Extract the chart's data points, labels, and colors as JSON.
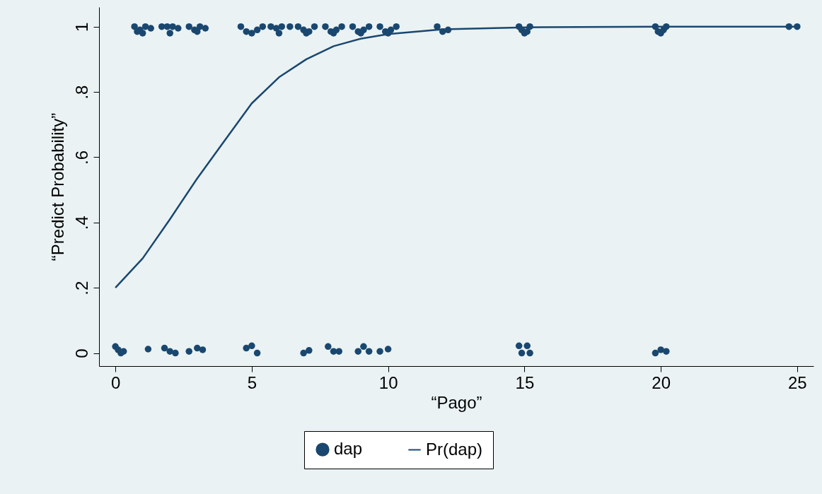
{
  "chart_data": {
    "type": "scatter",
    "xlabel": "“Pago”",
    "ylabel": "“Predict Probability”",
    "xlim": [
      -0.6,
      25.6
    ],
    "xticks": [
      0,
      5,
      10,
      15,
      20,
      25
    ],
    "ylim": [
      -0.04,
      1.06
    ],
    "yticks": [
      0,
      {
        "value": 0.2,
        "label": ".2"
      },
      {
        "value": 0.4,
        "label": ".4"
      },
      {
        "value": 0.6,
        "label": ".6"
      },
      {
        "value": 0.8,
        "label": ".8"
      },
      1
    ],
    "grid": false,
    "legend": "bottom",
    "line_style": "solid",
    "series": [
      {
        "name": "dap",
        "marker": "circle",
        "color": "#1a476f",
        "x": [
          0.7,
          0.8,
          0.9,
          1.0,
          1.1,
          1.3,
          1.7,
          1.9,
          2.0,
          2.1,
          2.3,
          2.7,
          2.9,
          3.0,
          3.1,
          3.3,
          4.6,
          4.8,
          5.0,
          5.2,
          5.4,
          5.7,
          5.9,
          6.0,
          6.1,
          6.4,
          6.7,
          6.9,
          7.0,
          7.1,
          7.3,
          7.7,
          7.9,
          8.0,
          8.1,
          8.3,
          8.7,
          8.9,
          9.0,
          9.1,
          9.3,
          9.7,
          9.9,
          10.0,
          10.1,
          10.3,
          11.8,
          12.0,
          12.2,
          14.8,
          14.9,
          15.0,
          15.1,
          15.2,
          19.8,
          19.9,
          20.0,
          20.1,
          20.2,
          24.7,
          25.0,
          0.0,
          0.1,
          0.2,
          0.3,
          1.2,
          1.8,
          2.0,
          2.2,
          2.7,
          3.0,
          3.2,
          4.8,
          5.0,
          5.2,
          6.9,
          7.1,
          7.8,
          8.0,
          8.2,
          8.9,
          9.1,
          9.3,
          9.7,
          10.0,
          14.8,
          14.9,
          15.1,
          15.2,
          19.8,
          20.0,
          20.2
        ],
        "values": [
          1,
          0.985,
          0.99,
          0.98,
          1,
          0.995,
          1,
          1,
          0.98,
          1,
          0.995,
          1,
          0.99,
          0.985,
          1,
          0.995,
          1,
          0.985,
          0.98,
          0.99,
          1,
          1,
          0.995,
          0.98,
          1,
          1,
          1,
          0.99,
          0.98,
          0.985,
          1,
          1,
          0.985,
          0.98,
          0.99,
          1,
          1,
          0.985,
          0.98,
          0.99,
          1,
          1,
          0.985,
          0.98,
          0.99,
          1,
          1,
          0.985,
          0.99,
          1,
          0.99,
          0.98,
          0.985,
          1,
          1,
          0.985,
          0.98,
          0.99,
          1,
          1,
          1,
          0.02,
          0.01,
          0,
          0.005,
          0.012,
          0.015,
          0.005,
          0,
          0.005,
          0.015,
          0.01,
          0.015,
          0.022,
          0,
          0,
          0.008,
          0.02,
          0.005,
          0.005,
          0.005,
          0.02,
          0.005,
          0.005,
          0.012,
          0.022,
          0,
          0.022,
          0,
          0,
          0.01,
          0.005
        ]
      },
      {
        "name": "Pr(dap)",
        "type": "line",
        "marker": "none",
        "color": "#1a476f",
        "x": [
          0,
          1,
          2,
          3,
          4,
          5,
          6,
          7,
          8,
          9,
          10,
          12,
          15,
          20,
          25
        ],
        "values": [
          0.2,
          0.29,
          0.41,
          0.535,
          0.65,
          0.765,
          0.845,
          0.9,
          0.94,
          0.963,
          0.977,
          0.992,
          0.998,
          1.0,
          1.0
        ]
      }
    ]
  }
}
